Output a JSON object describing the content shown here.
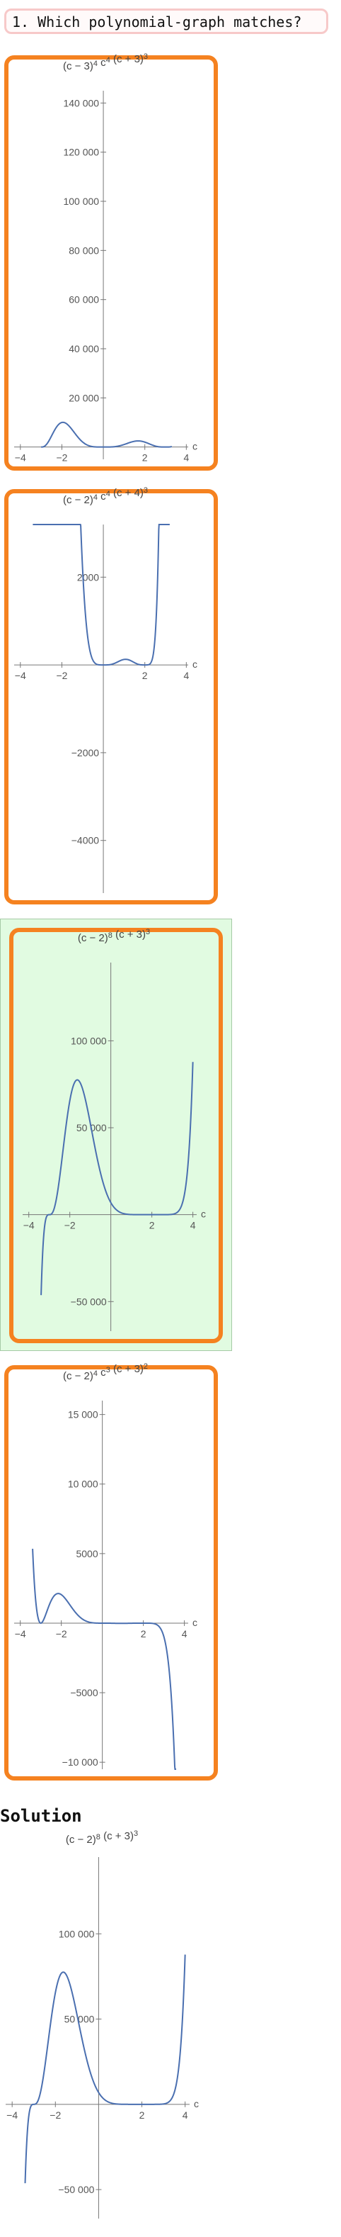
{
  "question": {
    "text": "1. Which polynomial-graph matches?"
  },
  "solution": {
    "title": "Solution"
  },
  "chart_data": [
    {
      "type": "line",
      "id": "option-1",
      "title": "(c − 3)⁴ c⁴ (c + 3)³",
      "title_parts": [
        [
          "(c − 3)",
          "4"
        ],
        [
          " c",
          "4"
        ],
        [
          " (c + 3)",
          "3"
        ]
      ],
      "xlabel": "c",
      "x_range": [
        -3.0,
        3.3
      ],
      "xlim": [
        -4.3,
        4.5
      ],
      "ylim": [
        -5000,
        145000
      ],
      "x_ticks": [
        -4,
        -2,
        2,
        4
      ],
      "x_tick_labels": [
        "−4",
        "−2",
        "2",
        "4"
      ],
      "y_ticks": [
        20000,
        40000,
        60000,
        80000,
        100000,
        120000,
        140000
      ],
      "y_tick_labels": [
        "20 000",
        "40 000",
        "60 000",
        "80 000",
        "100 000",
        "120 000",
        "140 000"
      ],
      "roots": [
        -3,
        0,
        3
      ],
      "multiplicities": [
        3,
        4,
        4
      ],
      "scale": 1
    },
    {
      "type": "line",
      "id": "option-2",
      "title": "(c − 2)⁴ c⁴ (c + 4)³",
      "title_parts": [
        [
          "(c − 2)",
          "4"
        ],
        [
          " c",
          "4"
        ],
        [
          " (c + 4)",
          "3"
        ]
      ],
      "xlabel": "c",
      "x_range": [
        -3.4,
        3.2
      ],
      "xlim": [
        -4.3,
        4.5
      ],
      "ylim": [
        -5200,
        3200
      ],
      "x_ticks": [
        -4,
        -2,
        2,
        4
      ],
      "x_tick_labels": [
        "−4",
        "−2",
        "2",
        "4"
      ],
      "y_ticks": [
        -4000,
        -2000,
        2000
      ],
      "y_tick_labels": [
        "−4000",
        "−2000",
        "2000"
      ],
      "roots": [
        -4,
        0,
        2
      ],
      "multiplicities": [
        3,
        4,
        4
      ],
      "scale": 1
    },
    {
      "type": "line",
      "id": "option-3",
      "title": "(c − 2)⁸ (c + 3)³",
      "title_parts": [
        [
          "(c − 2)",
          "8"
        ],
        [
          " (c + 3)",
          "3"
        ]
      ],
      "xlabel": "c",
      "x_range": [
        -3.4,
        4.0
      ],
      "xlim": [
        -4.3,
        4.6
      ],
      "ylim": [
        -67000,
        145000
      ],
      "x_ticks": [
        -4,
        -2,
        2,
        4
      ],
      "x_tick_labels": [
        "−4",
        "−2",
        "2",
        "4"
      ],
      "y_ticks": [
        -50000,
        50000,
        100000
      ],
      "y_tick_labels": [
        "−50 000",
        "50 000",
        "100 000"
      ],
      "roots": [
        -3,
        2
      ],
      "multiplicities": [
        3,
        8
      ],
      "scale": 1
    },
    {
      "type": "line",
      "id": "option-4",
      "title": "(c − 2)⁴ c³ (c + 3)²",
      "title_parts": [
        [
          "(c − 2)",
          "4"
        ],
        [
          " c",
          "3"
        ],
        [
          " (c + 3)",
          "2"
        ]
      ],
      "xlabel": "c",
      "x_range": [
        -3.4,
        3.6
      ],
      "xlim": [
        -4.3,
        4.6
      ],
      "ylim": [
        -10500,
        16000
      ],
      "x_ticks": [
        -4,
        -2,
        2,
        4
      ],
      "x_tick_labels": [
        "−4",
        "−2",
        "2",
        "4"
      ],
      "y_ticks": [
        -10000,
        -5000,
        5000,
        10000,
        15000
      ],
      "y_tick_labels": [
        "−10 000",
        "−5000",
        "5000",
        "10 000",
        "15 000"
      ],
      "roots": [
        -3,
        0,
        2
      ],
      "multiplicities": [
        2,
        3,
        4
      ],
      "scale": -1
    },
    {
      "type": "line",
      "id": "solution",
      "title": "(c − 2)⁸ (c + 3)³",
      "title_parts": [
        [
          "(c − 2)",
          "8"
        ],
        [
          " (c + 3)",
          "3"
        ]
      ],
      "xlabel": "c",
      "x_range": [
        -3.4,
        4.0
      ],
      "xlim": [
        -4.3,
        4.6
      ],
      "ylim": [
        -67000,
        145000
      ],
      "x_ticks": [
        -4,
        -2,
        2,
        4
      ],
      "x_tick_labels": [
        "−4",
        "−2",
        "2",
        "4"
      ],
      "y_ticks": [
        -50000,
        50000,
        100000
      ],
      "y_tick_labels": [
        "−50 000",
        "50 000",
        "100 000"
      ],
      "roots": [
        -3,
        2
      ],
      "multiplicities": [
        3,
        8
      ],
      "scale": 1
    }
  ]
}
